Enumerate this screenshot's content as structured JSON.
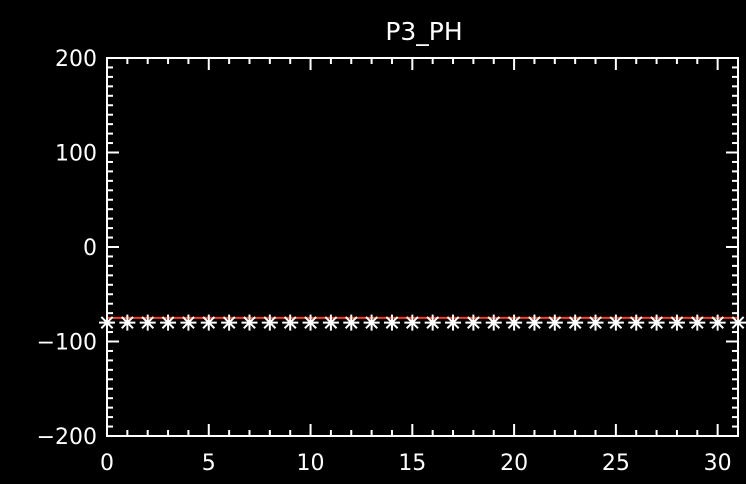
{
  "chart_data": {
    "type": "scatter",
    "title": "P3_PH",
    "xlabel": "",
    "ylabel": "",
    "xlim": [
      0,
      31
    ],
    "ylim": [
      -200,
      200
    ],
    "x_ticks": [
      0,
      5,
      10,
      15,
      20,
      25,
      30
    ],
    "x_tick_labels": [
      "0",
      "5",
      "10",
      "15",
      "20",
      "25",
      "30"
    ],
    "y_ticks": [
      -200,
      -100,
      0,
      100,
      200
    ],
    "y_tick_labels": [
      "−200",
      "−100",
      "0",
      "100",
      "200"
    ],
    "x_minor_step": 1,
    "y_minor_step": 10,
    "grid": false,
    "background": "#000000",
    "foreground": "#ffffff",
    "series": [
      {
        "marker": "asterisk",
        "color": "#ffffff",
        "x": [
          0,
          1,
          2,
          3,
          4,
          5,
          6,
          7,
          8,
          9,
          10,
          11,
          12,
          13,
          14,
          15,
          16,
          17,
          18,
          19,
          20,
          21,
          22,
          23,
          24,
          25,
          26,
          27,
          28,
          29,
          30,
          31
        ],
        "y": [
          -80,
          -80,
          -80,
          -80,
          -80,
          -80,
          -80,
          -80,
          -80,
          -80,
          -80,
          -80,
          -80,
          -80,
          -80,
          -80,
          -80,
          -80,
          -80,
          -80,
          -80,
          -80,
          -80,
          -80,
          -80,
          -80,
          -80,
          -80,
          -80,
          -80,
          -80,
          -80
        ]
      }
    ],
    "reference_lines": [
      {
        "y": -75,
        "color": "#ff3b1f"
      }
    ]
  }
}
